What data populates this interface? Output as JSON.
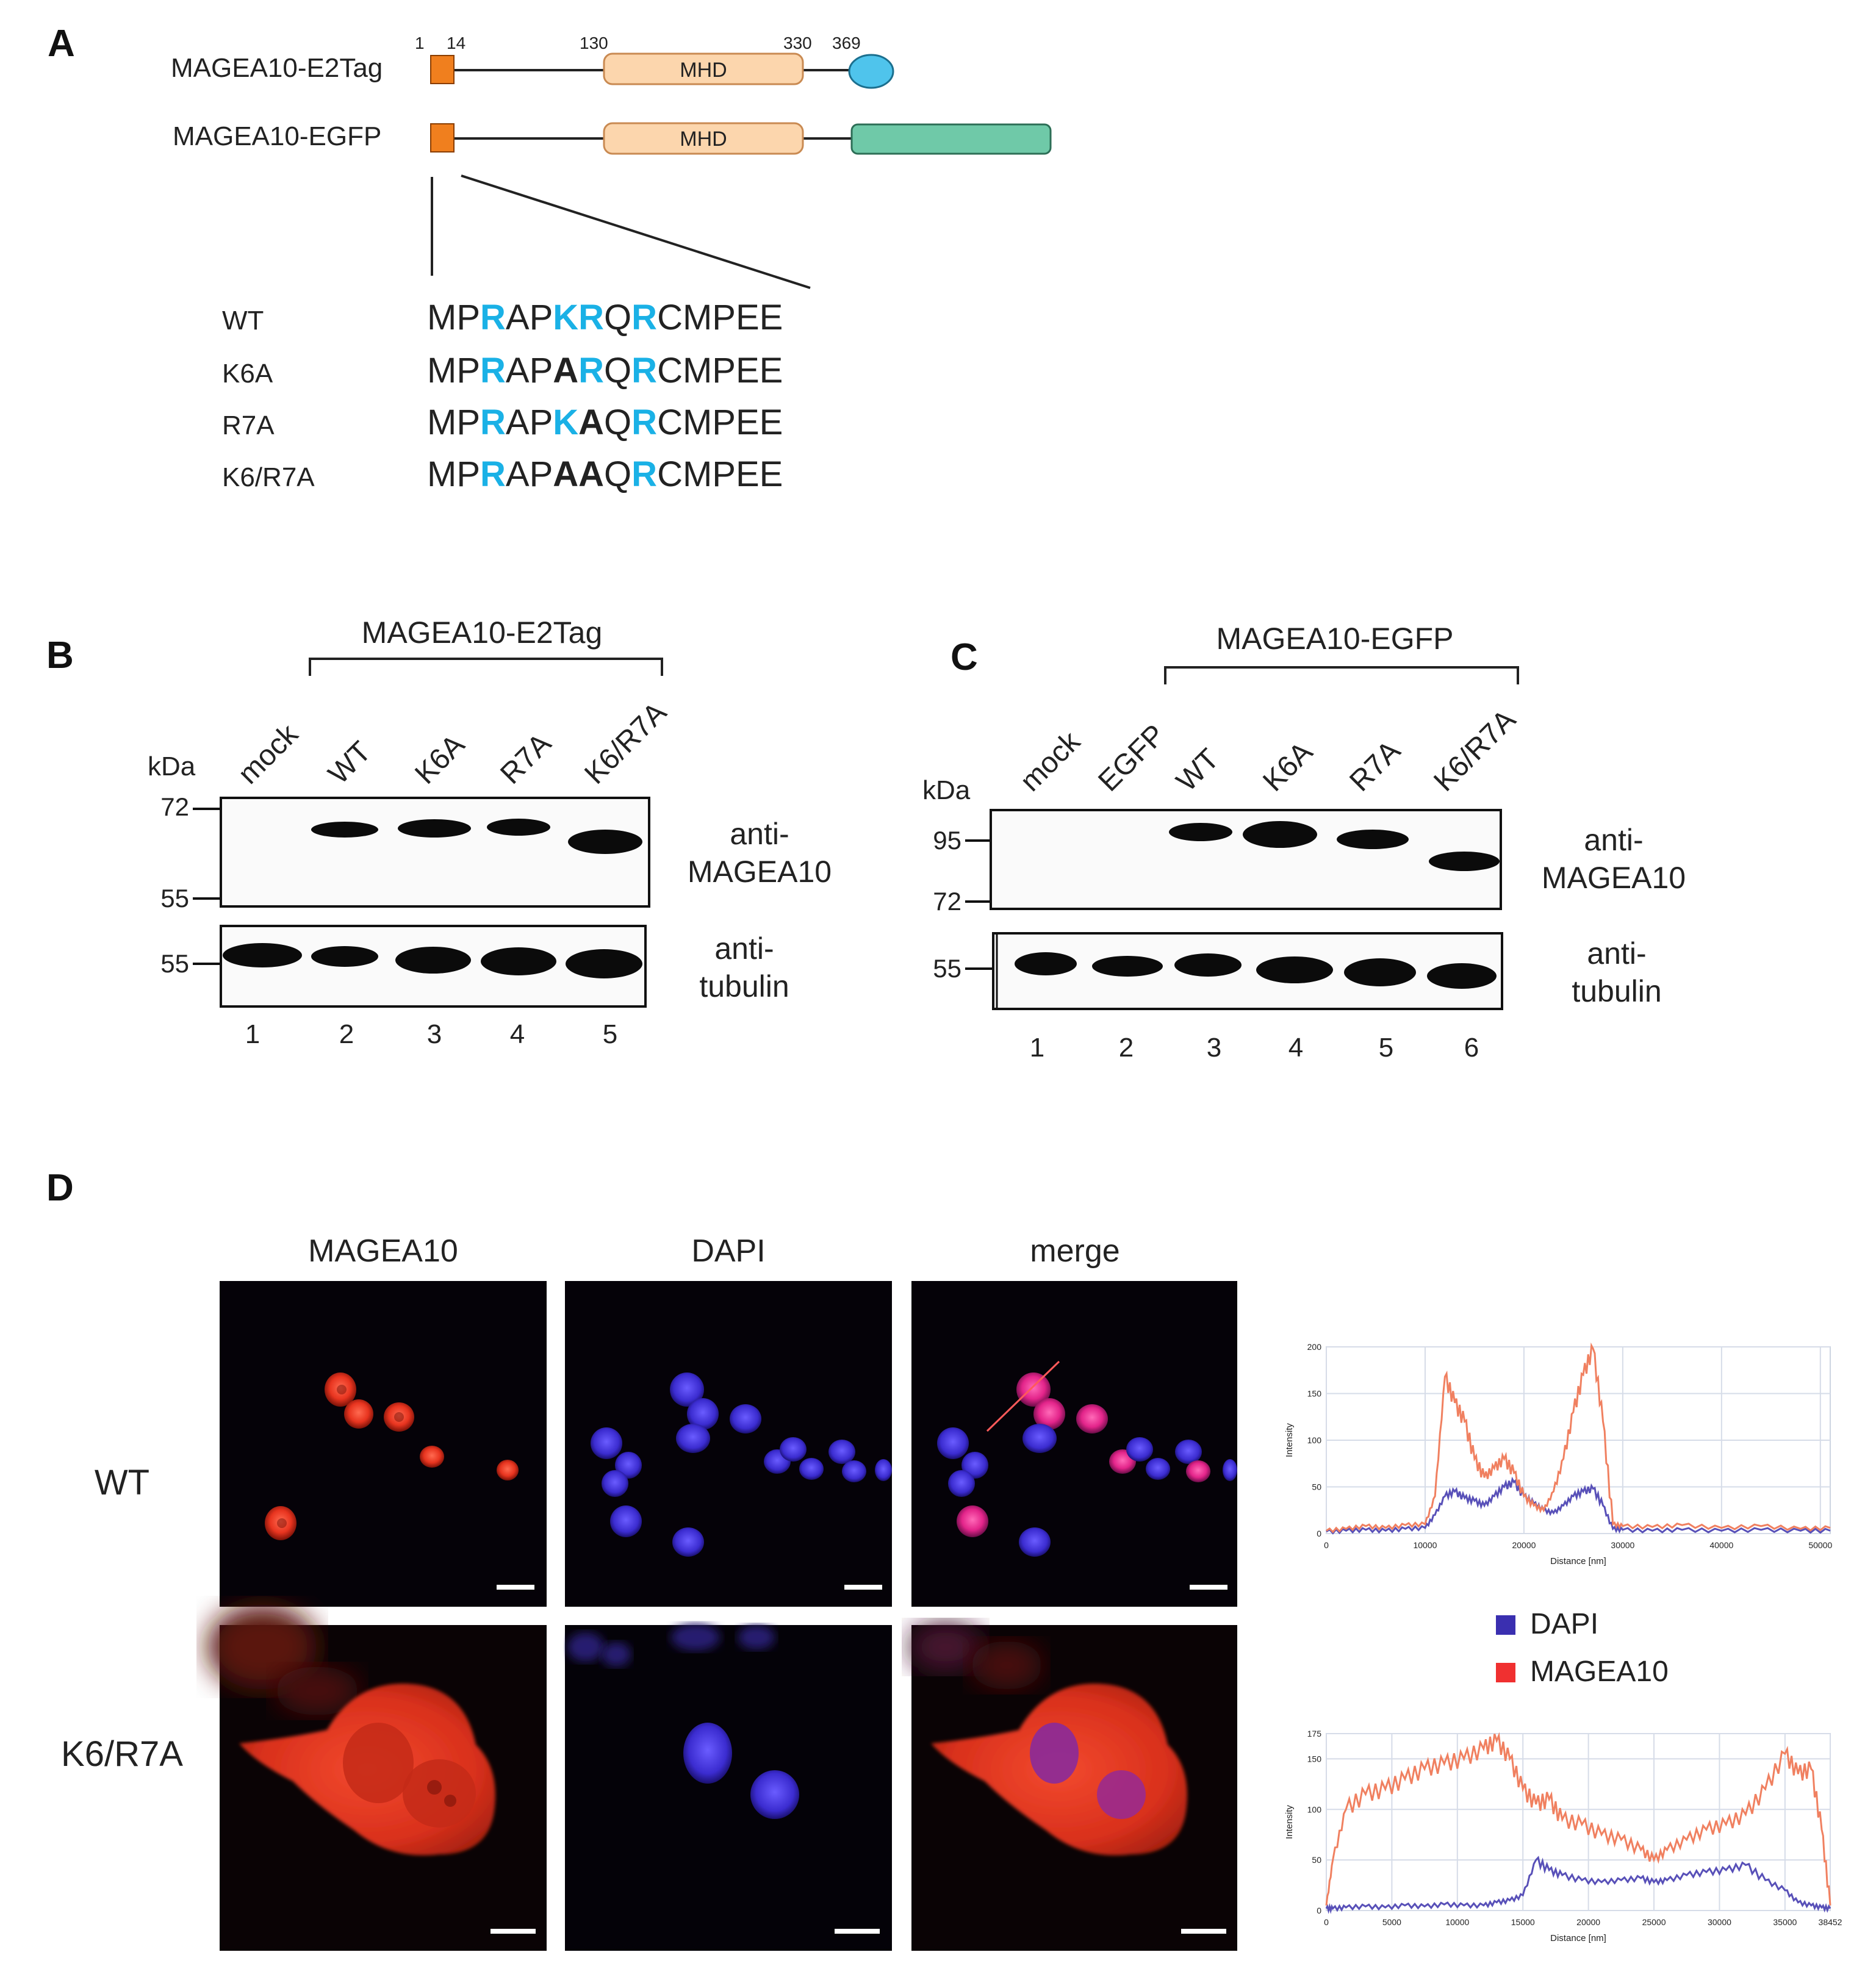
{
  "colors": {
    "orange": "#f07f1e",
    "mhd_fill": "#fcd6ad",
    "mhd_stroke": "#c98a52",
    "e2tag": "#4fc4ec",
    "egfp": "#6fc9a8",
    "cyan_res": "#1ab1e6",
    "red": "#e8341f",
    "blue": "#3d2fd6",
    "plot_red": "#f08060",
    "plot_blue": "#5850b8"
  },
  "panelA": {
    "letter": "A",
    "constructs": [
      {
        "name": "MAGEA10-E2Tag",
        "tag": "e2tag"
      },
      {
        "name": "MAGEA10-EGFP",
        "tag": "egfp"
      }
    ],
    "domain_label": "MHD",
    "positions": [
      "1",
      "14",
      "130",
      "330",
      "369"
    ],
    "variants": [
      {
        "label": "WT",
        "seq": [
          {
            "t": "MP",
            "s": "n"
          },
          {
            "t": "R",
            "s": "c"
          },
          {
            "t": "AP",
            "s": "n"
          },
          {
            "t": "KR",
            "s": "c"
          },
          {
            "t": "Q",
            "s": "n"
          },
          {
            "t": "R",
            "s": "c"
          },
          {
            "t": "CMPEE",
            "s": "n"
          }
        ]
      },
      {
        "label": "K6A",
        "seq": [
          {
            "t": "MP",
            "s": "n"
          },
          {
            "t": "R",
            "s": "c"
          },
          {
            "t": "AP",
            "s": "n"
          },
          {
            "t": "A",
            "s": "b"
          },
          {
            "t": "R",
            "s": "c"
          },
          {
            "t": "Q",
            "s": "n"
          },
          {
            "t": "R",
            "s": "c"
          },
          {
            "t": "CMPEE",
            "s": "n"
          }
        ]
      },
      {
        "label": "R7A",
        "seq": [
          {
            "t": "MP",
            "s": "n"
          },
          {
            "t": "R",
            "s": "c"
          },
          {
            "t": "AP",
            "s": "n"
          },
          {
            "t": "K",
            "s": "c"
          },
          {
            "t": "A",
            "s": "b"
          },
          {
            "t": "Q",
            "s": "n"
          },
          {
            "t": "R",
            "s": "c"
          },
          {
            "t": "CMPEE",
            "s": "n"
          }
        ]
      },
      {
        "label": "K6/R7A",
        "seq": [
          {
            "t": "MP",
            "s": "n"
          },
          {
            "t": "R",
            "s": "c"
          },
          {
            "t": "AP",
            "s": "n"
          },
          {
            "t": "AA",
            "s": "b"
          },
          {
            "t": "Q",
            "s": "n"
          },
          {
            "t": "R",
            "s": "c"
          },
          {
            "t": "CMPEE",
            "s": "n"
          }
        ]
      }
    ]
  },
  "panelB": {
    "letter": "B",
    "group_label": "MAGEA10-E2Tag",
    "kda": "kDa",
    "lanes": [
      "mock",
      "WT",
      "K6A",
      "R7A",
      "K6/R7A"
    ],
    "lane_numbers": [
      "1",
      "2",
      "3",
      "4",
      "5"
    ],
    "top_markers": [
      "72",
      "55"
    ],
    "bottom_markers": [
      "55"
    ],
    "top_label": [
      "anti-",
      "MAGEA10"
    ],
    "bottom_label": [
      "anti-",
      "tubulin"
    ]
  },
  "panelC": {
    "letter": "C",
    "group_label": "MAGEA10-EGFP",
    "kda": "kDa",
    "lanes": [
      "mock",
      "EGFP",
      "WT",
      "K6A",
      "R7A",
      "K6/R7A"
    ],
    "lane_numbers": [
      "1",
      "2",
      "3",
      "4",
      "5",
      "6"
    ],
    "top_markers": [
      "95",
      "72"
    ],
    "bottom_markers": [
      "55"
    ],
    "top_label": [
      "anti-",
      "MAGEA10"
    ],
    "bottom_label": [
      "anti-",
      "tubulin"
    ]
  },
  "panelD": {
    "letter": "D",
    "columns": [
      "MAGEA10",
      "DAPI",
      "merge"
    ],
    "rows": [
      "WT",
      "K6/R7A"
    ],
    "legend": [
      {
        "name": "DAPI",
        "color": "#3a2fb0"
      },
      {
        "name": "MAGEA10",
        "color": "#f03030"
      }
    ]
  },
  "chart_data": [
    {
      "type": "line",
      "title": "",
      "xlabel": "Distance [nm]",
      "ylabel": "Intensity",
      "xlim": [
        0,
        51000
      ],
      "ylim": [
        0,
        200
      ],
      "xticks": [
        "0",
        "10000",
        "20000",
        "30000",
        "40000",
        "50000"
      ],
      "yticks": [
        "0",
        "50",
        "100",
        "150",
        "200"
      ],
      "series": [
        {
          "name": "MAGEA10",
          "color": "#f08060",
          "x": [
            0,
            2000,
            4000,
            6000,
            8000,
            10000,
            11000,
            12000,
            13000,
            14000,
            15000,
            16000,
            17000,
            18000,
            19000,
            20000,
            21000,
            22000,
            23000,
            24000,
            25000,
            26000,
            27000,
            28000,
            29000,
            30000,
            33000,
            36000,
            40000,
            44000,
            48000,
            51000
          ],
          "y": [
            3,
            5,
            8,
            6,
            9,
            10,
            40,
            168,
            140,
            120,
            80,
            60,
            70,
            80,
            65,
            40,
            30,
            25,
            45,
            80,
            130,
            170,
            198,
            120,
            10,
            8,
            7,
            9,
            6,
            8,
            5,
            6
          ]
        },
        {
          "name": "DAPI",
          "color": "#5850b8",
          "x": [
            0,
            2000,
            4000,
            6000,
            8000,
            10000,
            11000,
            12000,
            13000,
            14000,
            15000,
            16000,
            17000,
            18000,
            19000,
            20000,
            21000,
            22000,
            23000,
            24000,
            25000,
            26000,
            27000,
            28000,
            29000,
            30000,
            33000,
            36000,
            40000,
            44000,
            48000,
            51000
          ],
          "y": [
            2,
            3,
            4,
            3,
            5,
            6,
            20,
            40,
            45,
            38,
            35,
            30,
            40,
            50,
            55,
            40,
            32,
            25,
            22,
            30,
            40,
            45,
            48,
            30,
            5,
            4,
            3,
            4,
            3,
            4,
            3,
            3
          ]
        }
      ]
    },
    {
      "type": "line",
      "title": "",
      "xlabel": "Distance [nm]",
      "ylabel": "Intensity",
      "xlim": [
        0,
        38452
      ],
      "ylim": [
        0,
        175
      ],
      "xticks": [
        "0",
        "5000",
        "10000",
        "15000",
        "20000",
        "25000",
        "30000",
        "35000",
        "38452"
      ],
      "yticks": [
        "0",
        "50",
        "100",
        "150",
        "175"
      ],
      "series": [
        {
          "name": "MAGEA10",
          "color": "#f08060",
          "x": [
            0,
            500,
            1500,
            3000,
            4500,
            6000,
            7500,
            9000,
            10500,
            12000,
            13000,
            14000,
            15000,
            16000,
            17000,
            18000,
            19500,
            21000,
            22500,
            24000,
            25000,
            26000,
            27500,
            29000,
            30500,
            32000,
            33500,
            35000,
            36000,
            37000,
            37800,
            38452
          ],
          "y": [
            5,
            50,
            100,
            115,
            120,
            130,
            140,
            145,
            150,
            160,
            168,
            150,
            120,
            105,
            110,
            90,
            85,
            75,
            70,
            60,
            50,
            60,
            70,
            80,
            85,
            95,
            120,
            155,
            135,
            140,
            80,
            5
          ]
        },
        {
          "name": "DAPI",
          "color": "#5850b8",
          "x": [
            0,
            500,
            1500,
            3000,
            4500,
            6000,
            7500,
            9000,
            10500,
            12000,
            13000,
            14000,
            15000,
            16000,
            17000,
            18000,
            19500,
            21000,
            22500,
            24000,
            25000,
            26000,
            27500,
            29000,
            30500,
            32000,
            33500,
            35000,
            36000,
            37000,
            37800,
            38452
          ],
          "y": [
            2,
            2,
            3,
            4,
            3,
            5,
            4,
            6,
            5,
            5,
            8,
            10,
            15,
            50,
            40,
            35,
            30,
            28,
            30,
            32,
            28,
            30,
            35,
            38,
            40,
            45,
            30,
            20,
            8,
            5,
            3,
            2
          ]
        }
      ]
    }
  ]
}
